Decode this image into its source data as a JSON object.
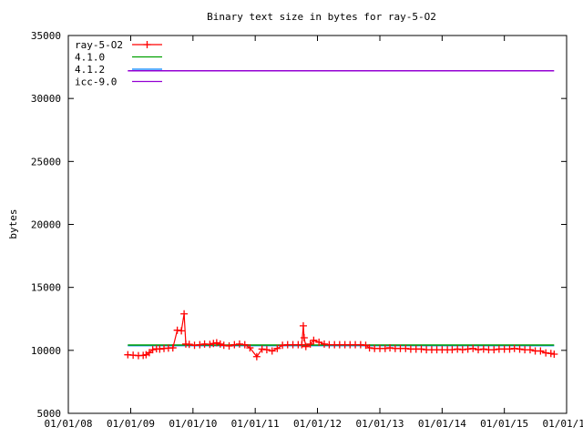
{
  "chart_data": {
    "type": "line",
    "title": "Binary text size in bytes for ray-5-O2",
    "xlabel": "",
    "ylabel": "bytes",
    "ylim": [
      5000,
      35000
    ],
    "yticks": [
      5000,
      10000,
      15000,
      20000,
      25000,
      30000,
      35000
    ],
    "xlim": [
      "2008-01-01",
      "2016-01-01"
    ],
    "xtick_labels": [
      "01/01/08",
      "01/01/09",
      "01/01/10",
      "01/01/11",
      "01/01/12",
      "01/01/13",
      "01/01/14",
      "01/01/15",
      "01/01/16"
    ],
    "xtick_dates": [
      "2008-01-01",
      "2009-01-01",
      "2010-01-01",
      "2011-01-01",
      "2012-01-01",
      "2013-01-01",
      "2014-01-01",
      "2015-01-01",
      "2016-01-01"
    ],
    "legend_position": "top-left",
    "grid": false,
    "series": [
      {
        "name": "ray-5-O2",
        "color": "#ff0000",
        "style": "linespoints",
        "marker": "plus",
        "points": [
          [
            "2008-12-15",
            9650
          ],
          [
            "2009-01-15",
            9620
          ],
          [
            "2009-02-15",
            9580
          ],
          [
            "2009-03-15",
            9600
          ],
          [
            "2009-04-01",
            9650
          ],
          [
            "2009-04-20",
            9820
          ],
          [
            "2009-05-10",
            10050
          ],
          [
            "2009-06-01",
            10120
          ],
          [
            "2009-06-20",
            10100
          ],
          [
            "2009-07-15",
            10150
          ],
          [
            "2009-08-10",
            10180
          ],
          [
            "2009-09-05",
            10200
          ],
          [
            "2009-10-01",
            11600
          ],
          [
            "2009-10-25",
            11550
          ],
          [
            "2009-11-10",
            12900
          ],
          [
            "2009-11-20",
            10500
          ],
          [
            "2009-12-10",
            10480
          ],
          [
            "2010-01-10",
            10400
          ],
          [
            "2010-02-10",
            10450
          ],
          [
            "2010-03-10",
            10500
          ],
          [
            "2010-04-10",
            10480
          ],
          [
            "2010-05-01",
            10550
          ],
          [
            "2010-05-20",
            10600
          ],
          [
            "2010-06-10",
            10500
          ],
          [
            "2010-07-01",
            10400
          ],
          [
            "2010-08-01",
            10350
          ],
          [
            "2010-09-01",
            10450
          ],
          [
            "2010-10-01",
            10500
          ],
          [
            "2010-11-01",
            10450
          ],
          [
            "2010-12-01",
            10200
          ],
          [
            "2011-01-10",
            9500
          ],
          [
            "2011-02-10",
            10100
          ],
          [
            "2011-03-10",
            10050
          ],
          [
            "2011-04-10",
            9950
          ],
          [
            "2011-05-10",
            10150
          ],
          [
            "2011-06-10",
            10400
          ],
          [
            "2011-07-10",
            10450
          ],
          [
            "2011-08-10",
            10450
          ],
          [
            "2011-09-10",
            10450
          ],
          [
            "2011-10-01",
            10450
          ],
          [
            "2011-10-10",
            11950
          ],
          [
            "2011-10-15",
            11000
          ],
          [
            "2011-10-25",
            10300
          ],
          [
            "2011-11-20",
            10500
          ],
          [
            "2011-12-10",
            10800
          ],
          [
            "2012-01-10",
            10650
          ],
          [
            "2012-02-10",
            10500
          ],
          [
            "2012-03-10",
            10450
          ],
          [
            "2012-04-10",
            10450
          ],
          [
            "2012-05-10",
            10450
          ],
          [
            "2012-06-10",
            10450
          ],
          [
            "2012-07-10",
            10450
          ],
          [
            "2012-08-10",
            10450
          ],
          [
            "2012-09-10",
            10450
          ],
          [
            "2012-10-10",
            10400
          ],
          [
            "2012-11-01",
            10200
          ],
          [
            "2012-12-01",
            10150
          ],
          [
            "2013-01-01",
            10150
          ],
          [
            "2013-02-01",
            10150
          ],
          [
            "2013-03-01",
            10200
          ],
          [
            "2013-04-01",
            10150
          ],
          [
            "2013-05-01",
            10150
          ],
          [
            "2013-06-01",
            10150
          ],
          [
            "2013-07-01",
            10100
          ],
          [
            "2013-08-01",
            10100
          ],
          [
            "2013-09-01",
            10100
          ],
          [
            "2013-10-01",
            10050
          ],
          [
            "2013-11-01",
            10050
          ],
          [
            "2013-12-01",
            10050
          ],
          [
            "2014-01-01",
            10050
          ],
          [
            "2014-02-01",
            10050
          ],
          [
            "2014-03-01",
            10050
          ],
          [
            "2014-04-01",
            10100
          ],
          [
            "2014-05-01",
            10050
          ],
          [
            "2014-06-01",
            10100
          ],
          [
            "2014-07-01",
            10150
          ],
          [
            "2014-08-01",
            10050
          ],
          [
            "2014-09-01",
            10100
          ],
          [
            "2014-10-01",
            10050
          ],
          [
            "2014-11-01",
            10050
          ],
          [
            "2014-12-01",
            10100
          ],
          [
            "2015-01-01",
            10100
          ],
          [
            "2015-02-01",
            10100
          ],
          [
            "2015-03-01",
            10150
          ],
          [
            "2015-04-01",
            10100
          ],
          [
            "2015-05-01",
            10050
          ],
          [
            "2015-06-01",
            10050
          ],
          [
            "2015-07-01",
            9950
          ],
          [
            "2015-08-01",
            9950
          ],
          [
            "2015-09-01",
            9800
          ],
          [
            "2015-10-01",
            9750
          ],
          [
            "2015-10-20",
            9700
          ]
        ]
      },
      {
        "name": "4.1.0",
        "color": "#00a000",
        "style": "line",
        "points": [
          [
            "2008-12-15",
            10420
          ],
          [
            "2015-10-20",
            10420
          ]
        ]
      },
      {
        "name": "4.1.2",
        "color": "#0080ff",
        "style": "line",
        "points": [
          [
            "2008-12-15",
            10380
          ],
          [
            "2015-10-20",
            10380
          ]
        ]
      },
      {
        "name": "icc-9.0",
        "color": "#9400d3",
        "style": "line",
        "points": [
          [
            "2008-12-15",
            32200
          ],
          [
            "2015-10-20",
            32200
          ]
        ]
      }
    ]
  }
}
